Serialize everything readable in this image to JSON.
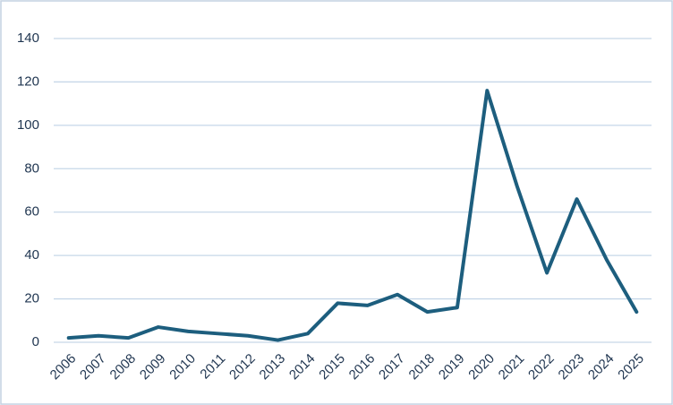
{
  "chart_data": {
    "type": "line",
    "categories": [
      "2006",
      "2007",
      "2008",
      "2009",
      "2010",
      "2011",
      "2012",
      "2013",
      "2014",
      "2015",
      "2016",
      "2017",
      "2018",
      "2019",
      "2020",
      "2021",
      "2022",
      "2023",
      "2024",
      "2025"
    ],
    "series": [
      {
        "color": "#1d5e7e",
        "values": [
          2,
          3,
          2,
          7,
          5,
          4,
          3,
          1,
          4,
          18,
          17,
          22,
          14,
          16,
          116,
          72,
          32,
          66,
          38,
          14
        ]
      }
    ],
    "ylim": [
      0,
      140
    ],
    "yticks": [
      0,
      20,
      40,
      60,
      80,
      100,
      120,
      140
    ],
    "grid": true
  }
}
